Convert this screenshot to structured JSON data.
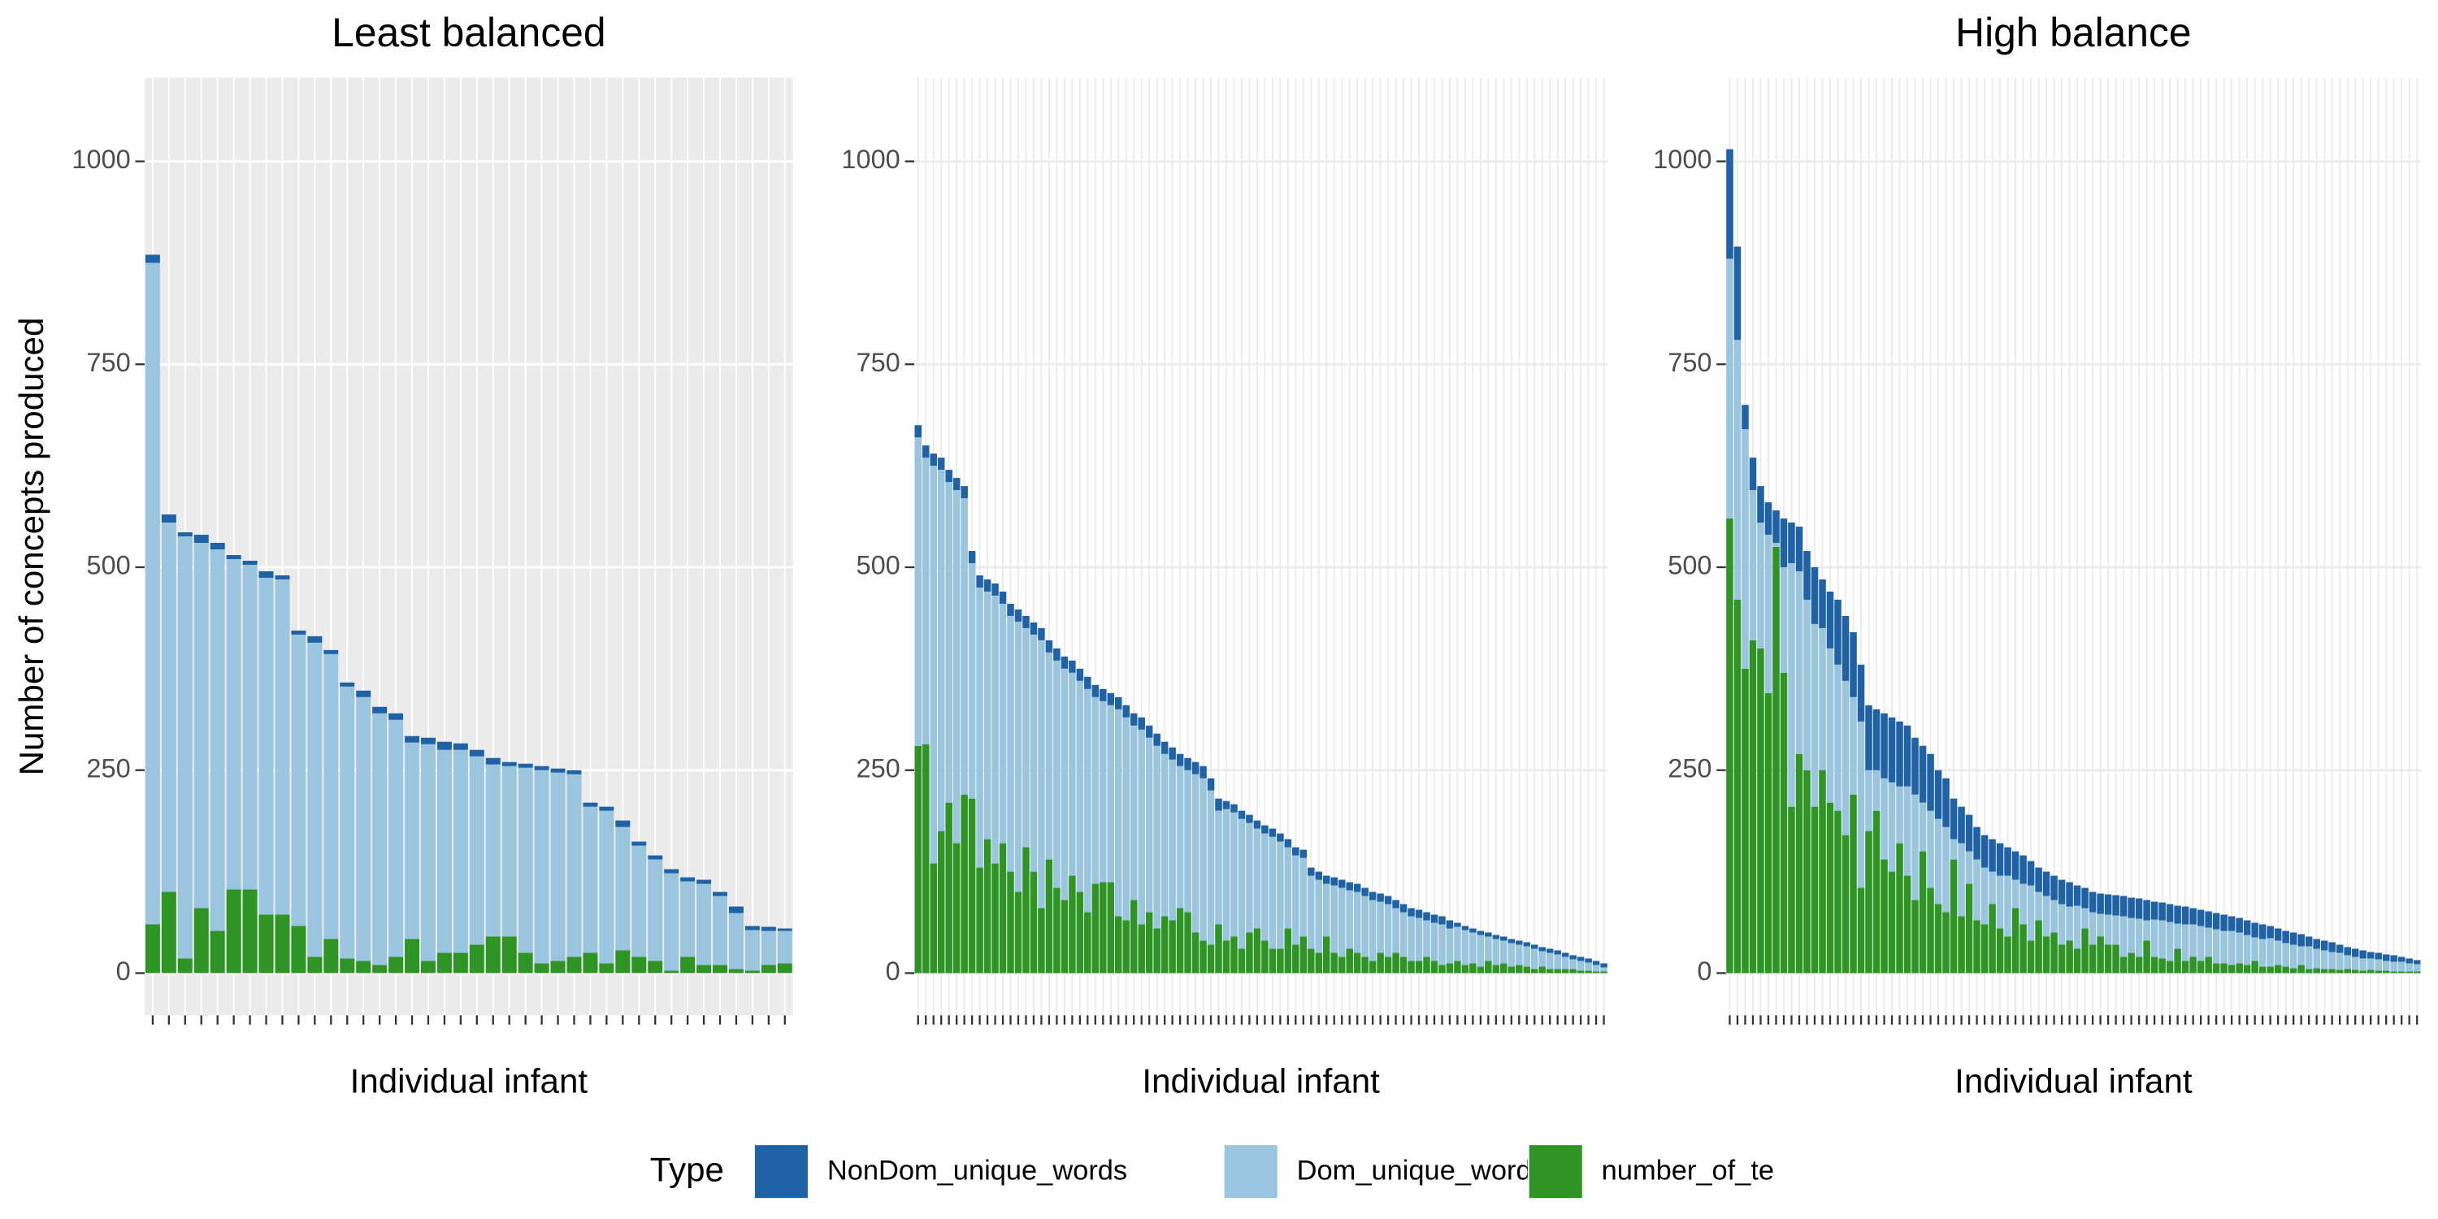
{
  "chart_data": [
    {
      "type": "bar",
      "stacked": true,
      "title": "Least balanced",
      "x_label": "Individual infant",
      "y_label": "Number of concepts produced",
      "background": "#ebebeb",
      "grid_color": "#ffffff",
      "grid": true,
      "ylim": [
        -52,
        1103
      ],
      "yticks": [
        0,
        250,
        500,
        750,
        1000
      ],
      "categories": [
        null,
        null,
        null,
        null,
        null,
        null,
        null,
        null,
        null,
        null,
        null,
        null,
        null,
        null,
        null,
        null,
        null,
        null,
        null,
        null,
        null,
        null,
        null,
        null,
        null,
        null,
        null,
        null,
        null,
        null,
        null,
        null,
        null,
        null,
        null,
        null,
        null,
        null,
        null,
        null
      ],
      "series": [
        {
          "name": "NonDom_unique_words",
          "color": "#1f62a6",
          "values": [
            10,
            10,
            5,
            10,
            8,
            5,
            5,
            8,
            5,
            5,
            8,
            5,
            5,
            8,
            8,
            8,
            8,
            8,
            10,
            8,
            8,
            8,
            5,
            5,
            5,
            5,
            5,
            5,
            5,
            8,
            5,
            5,
            5,
            5,
            5,
            5,
            8,
            5,
            5,
            3
          ]
        },
        {
          "name": "Dom_unique_words",
          "color": "#9ac5de",
          "values": [
            815,
            455,
            520,
            450,
            470,
            407,
            400,
            415,
            413,
            359,
            387,
            351,
            335,
            325,
            310,
            292,
            242,
            267,
            250,
            250,
            232,
            212,
            210,
            228,
            238,
            232,
            225,
            180,
            188,
            152,
            137,
            125,
            120,
            93,
            100,
            85,
            69,
            50,
            42,
            40
          ]
        },
        {
          "name": "number_of_te",
          "color": "#2e9424",
          "values": [
            60,
            100,
            18,
            80,
            52,
            103,
            103,
            72,
            72,
            58,
            20,
            42,
            18,
            15,
            10,
            20,
            42,
            15,
            25,
            25,
            35,
            45,
            45,
            25,
            12,
            15,
            20,
            25,
            12,
            28,
            20,
            15,
            3,
            20,
            10,
            10,
            5,
            3,
            10,
            12
          ]
        }
      ]
    },
    {
      "type": "bar",
      "stacked": true,
      "x_label": "Individual infant",
      "background": "#ffffff",
      "grid_color": "#ebebeb",
      "grid": true,
      "ylim": [
        -52,
        1103
      ],
      "yticks": [
        0,
        250,
        500,
        750,
        1000
      ],
      "categories": [
        null,
        null,
        null,
        null,
        null,
        null,
        null,
        null,
        null,
        null,
        null,
        null,
        null,
        null,
        null,
        null,
        null,
        null,
        null,
        null,
        null,
        null,
        null,
        null,
        null,
        null,
        null,
        null,
        null,
        null,
        null,
        null,
        null,
        null,
        null,
        null,
        null,
        null,
        null,
        null,
        null,
        null,
        null,
        null,
        null,
        null,
        null,
        null,
        null,
        null,
        null,
        null,
        null,
        null,
        null,
        null,
        null,
        null,
        null,
        null,
        null,
        null,
        null,
        null,
        null,
        null,
        null,
        null,
        null,
        null,
        null,
        null,
        null,
        null,
        null,
        null,
        null,
        null,
        null,
        null,
        null,
        null,
        null,
        null,
        null,
        null,
        null,
        null,
        null,
        null
      ],
      "series": [
        {
          "name": "NonDom_unique_words",
          "color": "#1f62a6",
          "values": [
            15,
            15,
            15,
            15,
            15,
            15,
            15,
            15,
            15,
            15,
            15,
            15,
            15,
            15,
            15,
            15,
            15,
            15,
            15,
            15,
            15,
            15,
            15,
            15,
            15,
            15,
            15,
            15,
            15,
            15,
            15,
            15,
            15,
            15,
            15,
            15,
            15,
            15,
            15,
            15,
            10,
            10,
            10,
            10,
            10,
            10,
            10,
            10,
            10,
            10,
            10,
            10,
            10,
            10,
            10,
            10,
            10,
            10,
            10,
            10,
            10,
            10,
            10,
            10,
            10,
            10,
            10,
            10,
            10,
            10,
            5,
            5,
            5,
            5,
            5,
            5,
            5,
            5,
            5,
            5,
            5,
            5,
            5,
            5,
            5,
            5,
            5,
            5,
            5,
            5
          ]
        },
        {
          "name": "Dom_unique_words",
          "color": "#9ac5de",
          "values": [
            380,
            353,
            490,
            445,
            395,
            435,
            365,
            290,
            345,
            305,
            330,
            295,
            315,
            333,
            270,
            292,
            330,
            255,
            280,
            285,
            250,
            260,
            275,
            230,
            223,
            218,
            255,
            250,
            215,
            240,
            215,
            225,
            200,
            198,
            175,
            175,
            195,
            200,
            190,
            140,
            162,
            153,
            160,
            135,
            123,
            132,
            138,
            132,
            100,
            110,
            97,
            90,
            90,
            65,
            83,
            85,
            72,
            75,
            75,
            75,
            63,
            65,
            55,
            55,
            55,
            53,
            45,
            47,
            50,
            43,
            42,
            43,
            38,
            39,
            30,
            32,
            28,
            29,
            25,
            25,
            25,
            19,
            20,
            18,
            15,
            12,
            12,
            10,
            8,
            5
          ]
        },
        {
          "name": "number_of_te",
          "color": "#2e9424",
          "values": [
            280,
            282,
            135,
            175,
            210,
            160,
            220,
            215,
            130,
            165,
            135,
            160,
            125,
            100,
            155,
            125,
            80,
            140,
            105,
            90,
            120,
            100,
            75,
            110,
            112,
            112,
            70,
            65,
            90,
            60,
            75,
            55,
            70,
            65,
            80,
            75,
            50,
            40,
            35,
            60,
            40,
            45,
            30,
            50,
            55,
            40,
            30,
            30,
            55,
            35,
            45,
            30,
            25,
            45,
            25,
            20,
            30,
            25,
            20,
            15,
            25,
            20,
            25,
            20,
            15,
            15,
            20,
            15,
            10,
            12,
            15,
            10,
            12,
            8,
            15,
            10,
            12,
            8,
            10,
            8,
            5,
            8,
            5,
            5,
            5,
            5,
            3,
            3,
            2,
            2
          ]
        }
      ]
    },
    {
      "type": "bar",
      "stacked": true,
      "title": "High balance",
      "x_label": "Individual infant",
      "background": "#ffffff",
      "grid_color": "#ebebeb",
      "grid": true,
      "ylim": [
        -52,
        1103
      ],
      "yticks": [
        0,
        250,
        500,
        750,
        1000
      ],
      "categories": [
        null,
        null,
        null,
        null,
        null,
        null,
        null,
        null,
        null,
        null,
        null,
        null,
        null,
        null,
        null,
        null,
        null,
        null,
        null,
        null,
        null,
        null,
        null,
        null,
        null,
        null,
        null,
        null,
        null,
        null,
        null,
        null,
        null,
        null,
        null,
        null,
        null,
        null,
        null,
        null,
        null,
        null,
        null,
        null,
        null,
        null,
        null,
        null,
        null,
        null,
        null,
        null,
        null,
        null,
        null,
        null,
        null,
        null,
        null,
        null,
        null,
        null,
        null,
        null,
        null,
        null,
        null,
        null,
        null,
        null,
        null,
        null,
        null,
        null,
        null,
        null,
        null,
        null,
        null,
        null,
        null,
        null,
        null,
        null,
        null,
        null,
        null,
        null,
        null,
        null
      ],
      "series": [
        {
          "name": "NonDom_unique_words",
          "color": "#1f62a6",
          "values": [
            135,
            115,
            30,
            40,
            45,
            40,
            40,
            60,
            50,
            55,
            60,
            70,
            60,
            70,
            80,
            80,
            80,
            70,
            80,
            75,
            80,
            80,
            80,
            75,
            70,
            70,
            70,
            60,
            60,
            50,
            45,
            45,
            40,
            40,
            40,
            40,
            35,
            35,
            35,
            30,
            30,
            30,
            30,
            30,
            30,
            25,
            25,
            25,
            25,
            25,
            25,
            25,
            25,
            25,
            25,
            22,
            22,
            22,
            22,
            22,
            20,
            20,
            20,
            20,
            20,
            18,
            18,
            18,
            18,
            18,
            15,
            15,
            15,
            15,
            15,
            12,
            12,
            12,
            12,
            10,
            10,
            10,
            10,
            8,
            8,
            8,
            8,
            6,
            6,
            5
          ]
        },
        {
          "name": "Dom_unique_words",
          "color": "#9ac5de",
          "values": [
            320,
            320,
            295,
            185,
            155,
            195,
            5,
            130,
            300,
            225,
            210,
            225,
            175,
            190,
            180,
            190,
            120,
            205,
            75,
            50,
            100,
            110,
            70,
            110,
            130,
            60,
            95,
            105,
            105,
            25,
            90,
            40,
            75,
            70,
            40,
            65,
            75,
            35,
            50,
            68,
            35,
            50,
            40,
            50,
            42,
            53,
            25,
            40,
            28,
            37,
            36,
            50,
            43,
            47,
            25,
            46,
            47,
            48,
            31,
            45,
            40,
            43,
            36,
            42,
            40,
            42,
            38,
            37,
            29,
            34,
            35,
            30,
            29,
            29,
            23,
            28,
            24,
            23,
            21,
            21,
            17,
            16,
            15,
            14,
            14,
            12,
            12,
            12,
            10,
            9
          ]
        },
        {
          "name": "number_of_te",
          "color": "#2e9424",
          "values": [
            560,
            460,
            375,
            410,
            400,
            345,
            525,
            370,
            205,
            270,
            250,
            205,
            250,
            210,
            200,
            170,
            220,
            105,
            175,
            200,
            140,
            125,
            160,
            120,
            90,
            150,
            105,
            85,
            75,
            140,
            70,
            110,
            65,
            60,
            85,
            55,
            45,
            80,
            60,
            40,
            65,
            45,
            50,
            35,
            40,
            30,
            55,
            35,
            45,
            35,
            35,
            20,
            25,
            20,
            40,
            20,
            18,
            15,
            30,
            15,
            20,
            15,
            20,
            12,
            12,
            10,
            12,
            10,
            15,
            8,
            8,
            10,
            8,
            6,
            10,
            5,
            6,
            5,
            5,
            4,
            5,
            4,
            3,
            4,
            3,
            3,
            2,
            2,
            2,
            2
          ]
        }
      ]
    }
  ],
  "legend": {
    "title": "Type",
    "position": "bottom"
  }
}
